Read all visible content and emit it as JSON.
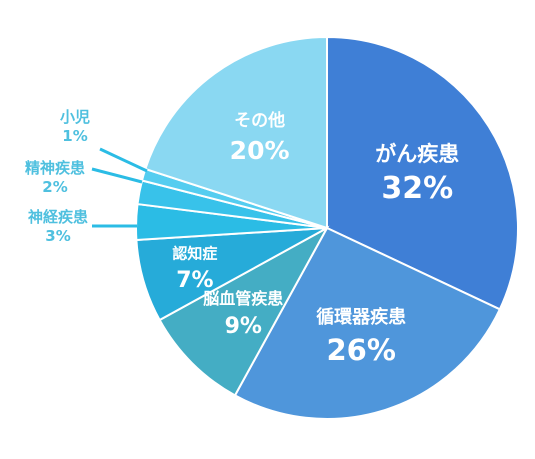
{
  "chart_data": {
    "type": "pie",
    "title": "",
    "slices": [
      {
        "name": "がん疾患",
        "value": 32,
        "label": "32%",
        "color": "#3f7fd6"
      },
      {
        "name": "循環器疾患",
        "value": 26,
        "label": "26%",
        "color": "#4f96db"
      },
      {
        "name": "脳血管疾患",
        "value": 9,
        "label": "9%",
        "color": "#44adc4"
      },
      {
        "name": "認知症",
        "value": 7,
        "label": "7%",
        "color": "#26abd9"
      },
      {
        "name": "神経疾患",
        "value": 3,
        "label": "3%",
        "color": "#2bbce5"
      },
      {
        "name": "精神疾患",
        "value": 2,
        "label": "2%",
        "color": "#38c2ea"
      },
      {
        "name": "小児",
        "value": 1,
        "label": "1%",
        "color": "#55cdf0"
      },
      {
        "name": "その他",
        "value": 20,
        "label": "20%",
        "color": "#8ad8f2"
      }
    ]
  }
}
